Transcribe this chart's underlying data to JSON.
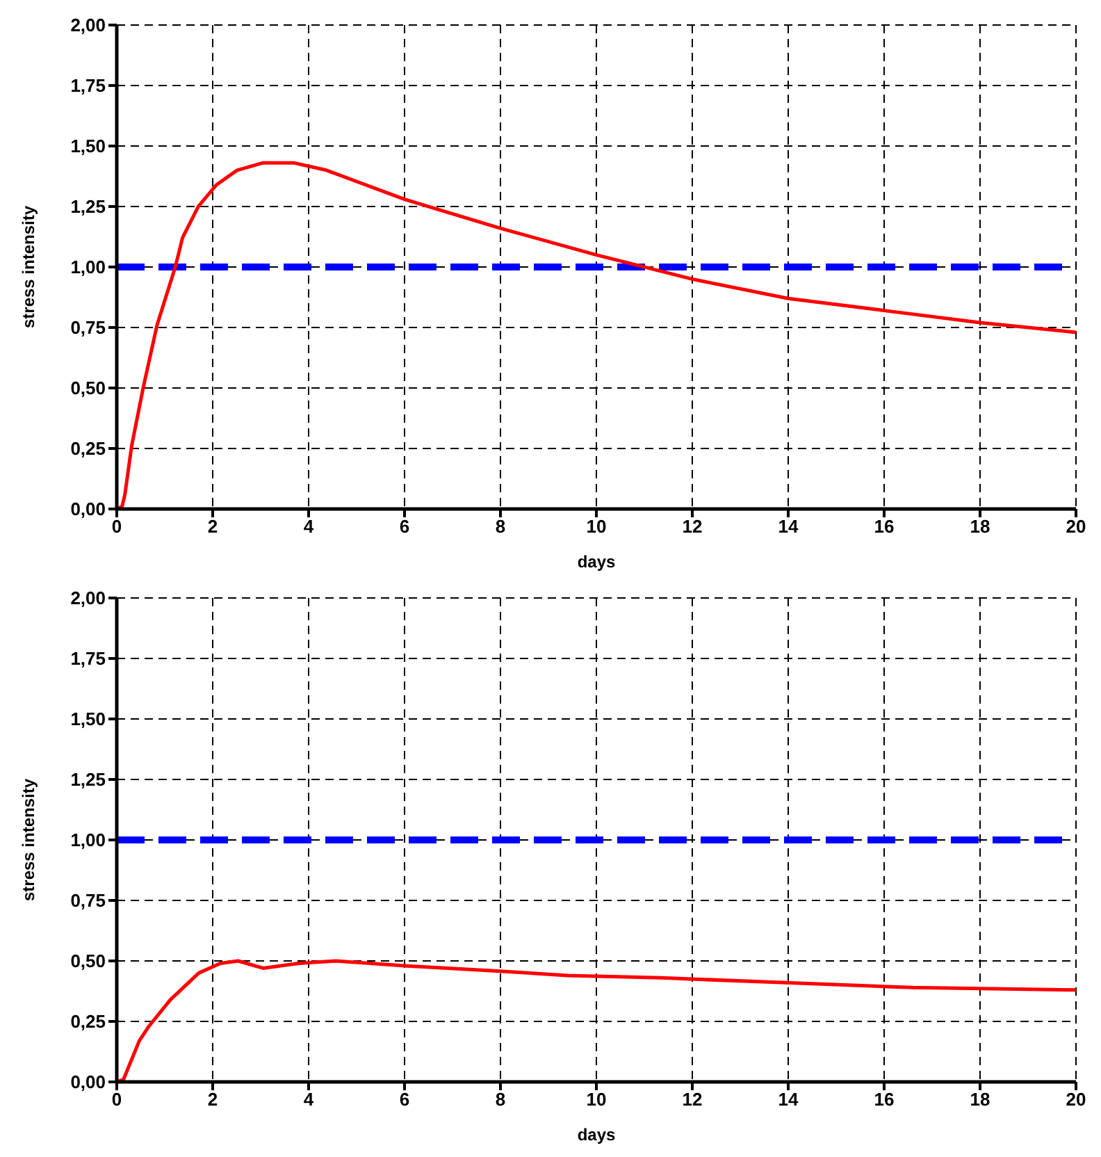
{
  "chart_data": [
    {
      "type": "line",
      "xlabel": "days",
      "ylabel": "stress intensity",
      "xlim": [
        0,
        20
      ],
      "xticks": [
        0,
        2,
        4,
        6,
        8,
        10,
        12,
        14,
        16,
        18,
        20
      ],
      "ylim": [
        0,
        2
      ],
      "yticks": [
        {
          "value": 0,
          "label": "0,00"
        },
        {
          "value": 0.25,
          "label": "0,25"
        },
        {
          "value": 0.5,
          "label": "0,50"
        },
        {
          "value": 0.75,
          "label": "0,75"
        },
        {
          "value": 1,
          "label": "1,00"
        },
        {
          "value": 1.25,
          "label": "1,25"
        },
        {
          "value": 1.5,
          "label": "1,50"
        },
        {
          "value": 1.75,
          "label": "1,75"
        },
        {
          "value": 2,
          "label": "2,00"
        }
      ],
      "grid": true,
      "marker": "none",
      "line_style": "solid",
      "series": [
        {
          "color": "#ff0000",
          "x": [
            0,
            0.11,
            0.17,
            0.31,
            0.55,
            0.84,
            1.22,
            1.37,
            1.7,
            2.08,
            2.51,
            3.04,
            3.7,
            4.37,
            6,
            8,
            10,
            12,
            14,
            16,
            18,
            20
          ],
          "values": [
            0,
            0.01,
            0.06,
            0.26,
            0.5,
            0.76,
            1.0,
            1.12,
            1.25,
            1.34,
            1.4,
            1.43,
            1.43,
            1.4,
            1.28,
            1.16,
            1.05,
            0.95,
            0.87,
            0.82,
            0.77,
            0.73
          ]
        }
      ],
      "ref_lines": [
        {
          "axis": "y",
          "value": 1,
          "color": "#0000ff",
          "line_style": "dashed"
        }
      ]
    },
    {
      "type": "line",
      "xlabel": "days",
      "ylabel": "stress intensity",
      "xlim": [
        0,
        20
      ],
      "xticks": [
        0,
        2,
        4,
        6,
        8,
        10,
        12,
        14,
        16,
        18,
        20
      ],
      "ylim": [
        0,
        2
      ],
      "yticks": [
        {
          "value": 0,
          "label": "0,00"
        },
        {
          "value": 0.25,
          "label": "0,25"
        },
        {
          "value": 0.5,
          "label": "0,50"
        },
        {
          "value": 0.75,
          "label": "0,75"
        },
        {
          "value": 1,
          "label": "1,00"
        },
        {
          "value": 1.25,
          "label": "1,25"
        },
        {
          "value": 1.5,
          "label": "1,50"
        },
        {
          "value": 1.75,
          "label": "1,75"
        },
        {
          "value": 2,
          "label": "2,00"
        }
      ],
      "grid": true,
      "marker": "none",
      "line_style": "solid",
      "series": [
        {
          "color": "#ff0000",
          "x": [
            0,
            0.14,
            0.47,
            0.67,
            1.12,
            1.71,
            2.16,
            2.53,
            3.05,
            3.79,
            4.57,
            6,
            7.8,
            9.4,
            11.35,
            13.95,
            16.6,
            20
          ],
          "values": [
            0,
            0.01,
            0.17,
            0.23,
            0.34,
            0.45,
            0.49,
            0.5,
            0.47,
            0.49,
            0.5,
            0.48,
            0.46,
            0.44,
            0.43,
            0.41,
            0.39,
            0.38
          ]
        }
      ],
      "ref_lines": [
        {
          "axis": "y",
          "value": 1,
          "color": "#0000ff",
          "line_style": "dashed"
        }
      ]
    }
  ]
}
